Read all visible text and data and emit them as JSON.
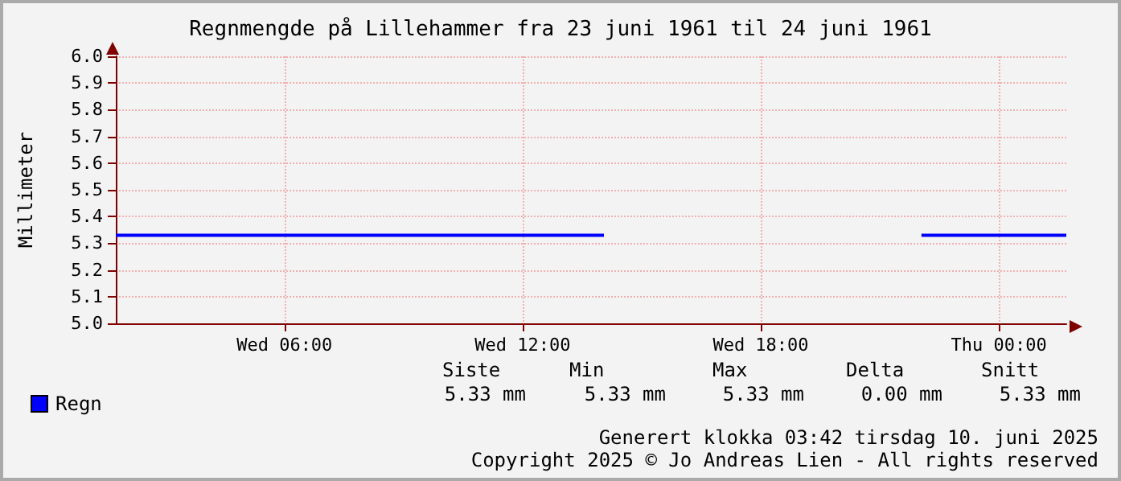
{
  "chart_data": {
    "type": "line",
    "title": "Regnmengde på Lillehammer fra 23 juni 1961 til 24 juni 1961",
    "ylabel": "Millimeter",
    "series": [
      {
        "name": "Regn",
        "color": "#0000ff",
        "x": [
          "1961-06-23T01:45",
          "1961-06-23T14:03",
          "1961-06-23T18:00",
          "1961-06-23T22:03",
          "1961-06-24T01:42"
        ],
        "values": [
          5.33,
          5.33,
          null,
          5.33,
          5.33
        ]
      }
    ],
    "xlim": [
      "1961-06-23T01:45",
      "1961-06-24T01:42"
    ],
    "xticks": [
      {
        "value": "1961-06-23T06:00",
        "label": "Wed 06:00"
      },
      {
        "value": "1961-06-23T12:00",
        "label": "Wed 12:00"
      },
      {
        "value": "1961-06-23T18:00",
        "label": "Wed 18:00"
      },
      {
        "value": "1961-06-24T00:00",
        "label": "Thu 00:00"
      }
    ],
    "ylim": [
      5.0,
      6.0
    ],
    "yticks": [
      {
        "value": 5,
        "label": "5.0"
      },
      5.1,
      5.2,
      5.3,
      5.4,
      5.5,
      5.6,
      5.7,
      5.8,
      5.9,
      {
        "value": 6,
        "label": "6.0"
      }
    ],
    "grid": true,
    "legend": "bottom left",
    "marker": "none",
    "line_style": "solid",
    "annotations": [
      "Siste",
      "Min",
      "Max",
      "Delta",
      "Snitt",
      "5.33 mm",
      "5.33 mm",
      "5.33 mm",
      "0.00 mm",
      "5.33 mm",
      "Generert klokka 03:42 tirsdag 10. juni 2025",
      "Copyright 2025 © Jo Andreas Lien - All rights reserved"
    ]
  }
}
